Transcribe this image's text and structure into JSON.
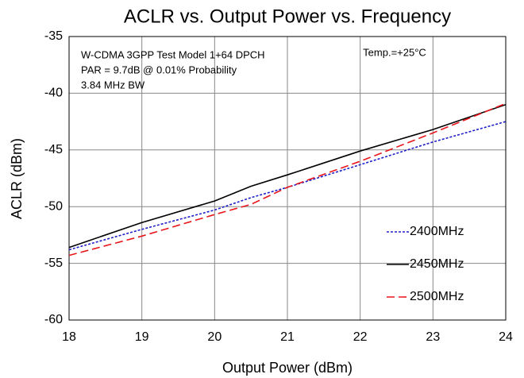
{
  "chart_data": {
    "type": "line",
    "title": "ACLR vs. Output Power vs. Frequency",
    "xlabel": "Output Power (dBm)",
    "ylabel": "ACLR (dBm)",
    "annotations": [
      "W-CDMA 3GPP Test Model 1+64 DPCH",
      "PAR = 9.7dB @ 0.01% Probability",
      "3.84 MHz BW",
      "Temp.=+25°C"
    ],
    "x": [
      18,
      19,
      20,
      20.5,
      21,
      22,
      23,
      24
    ],
    "series": [
      {
        "name": "2400MHz",
        "color": "#1f1fc8",
        "dash": "dotted",
        "values": [
          -53.8,
          -52.0,
          -50.3,
          -49.2,
          -48.3,
          -46.3,
          -44.3,
          -42.5
        ]
      },
      {
        "name": "2450MHz",
        "color": "#000000",
        "dash": "solid",
        "values": [
          -53.6,
          -51.4,
          -49.5,
          -48.2,
          -47.2,
          -45.1,
          -43.2,
          -41.0
        ]
      },
      {
        "name": "2500MHz",
        "color": "#e8161b",
        "dash": "dashed",
        "values": [
          -54.3,
          -52.6,
          -50.7,
          -49.8,
          -48.3,
          -46.0,
          -43.5,
          -40.9
        ]
      }
    ],
    "xlim": [
      18,
      24
    ],
    "xticks": [
      18,
      19,
      20,
      21,
      22,
      23,
      24
    ],
    "ylim": [
      -60,
      -35
    ],
    "yticks": [
      -60,
      -55,
      -50,
      -45,
      -40,
      -35
    ],
    "grid": true,
    "legend": "lower right"
  }
}
